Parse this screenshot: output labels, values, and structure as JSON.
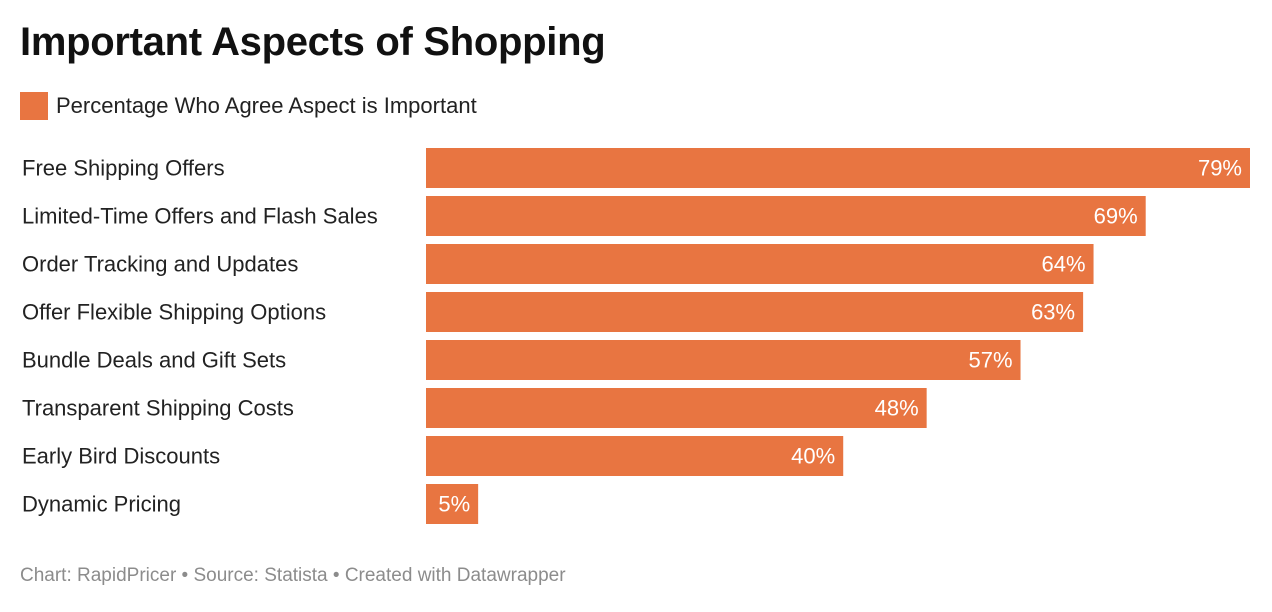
{
  "colors": {
    "bar": "#e87541",
    "value_label": "#ffffff",
    "category_label": "#222222",
    "footer": "#8c8c8c"
  },
  "chart_data": {
    "type": "bar",
    "orientation": "horizontal",
    "title": "Important Aspects of Shopping",
    "legend": [
      "Percentage Who Agree Aspect is Important"
    ],
    "legend_placement": "top-left",
    "categories": [
      "Free Shipping Offers",
      "Limited-Time Offers and Flash Sales",
      "Order Tracking and Updates",
      "Offer Flexible Shipping Options",
      "Bundle Deals and Gift Sets",
      "Transparent Shipping Costs",
      "Early Bird Discounts",
      "Dynamic Pricing"
    ],
    "series": [
      {
        "name": "Percentage Who Agree Aspect is Important",
        "values": [
          79,
          69,
          64,
          63,
          57,
          48,
          40,
          5
        ]
      }
    ],
    "value_labels": [
      "79%",
      "69%",
      "64%",
      "63%",
      "57%",
      "48%",
      "40%",
      "5%"
    ],
    "xlim": [
      0,
      79
    ],
    "grid": false
  },
  "footer": {
    "text": "Chart: RapidPricer • Source: Statista • Created with Datawrapper"
  }
}
